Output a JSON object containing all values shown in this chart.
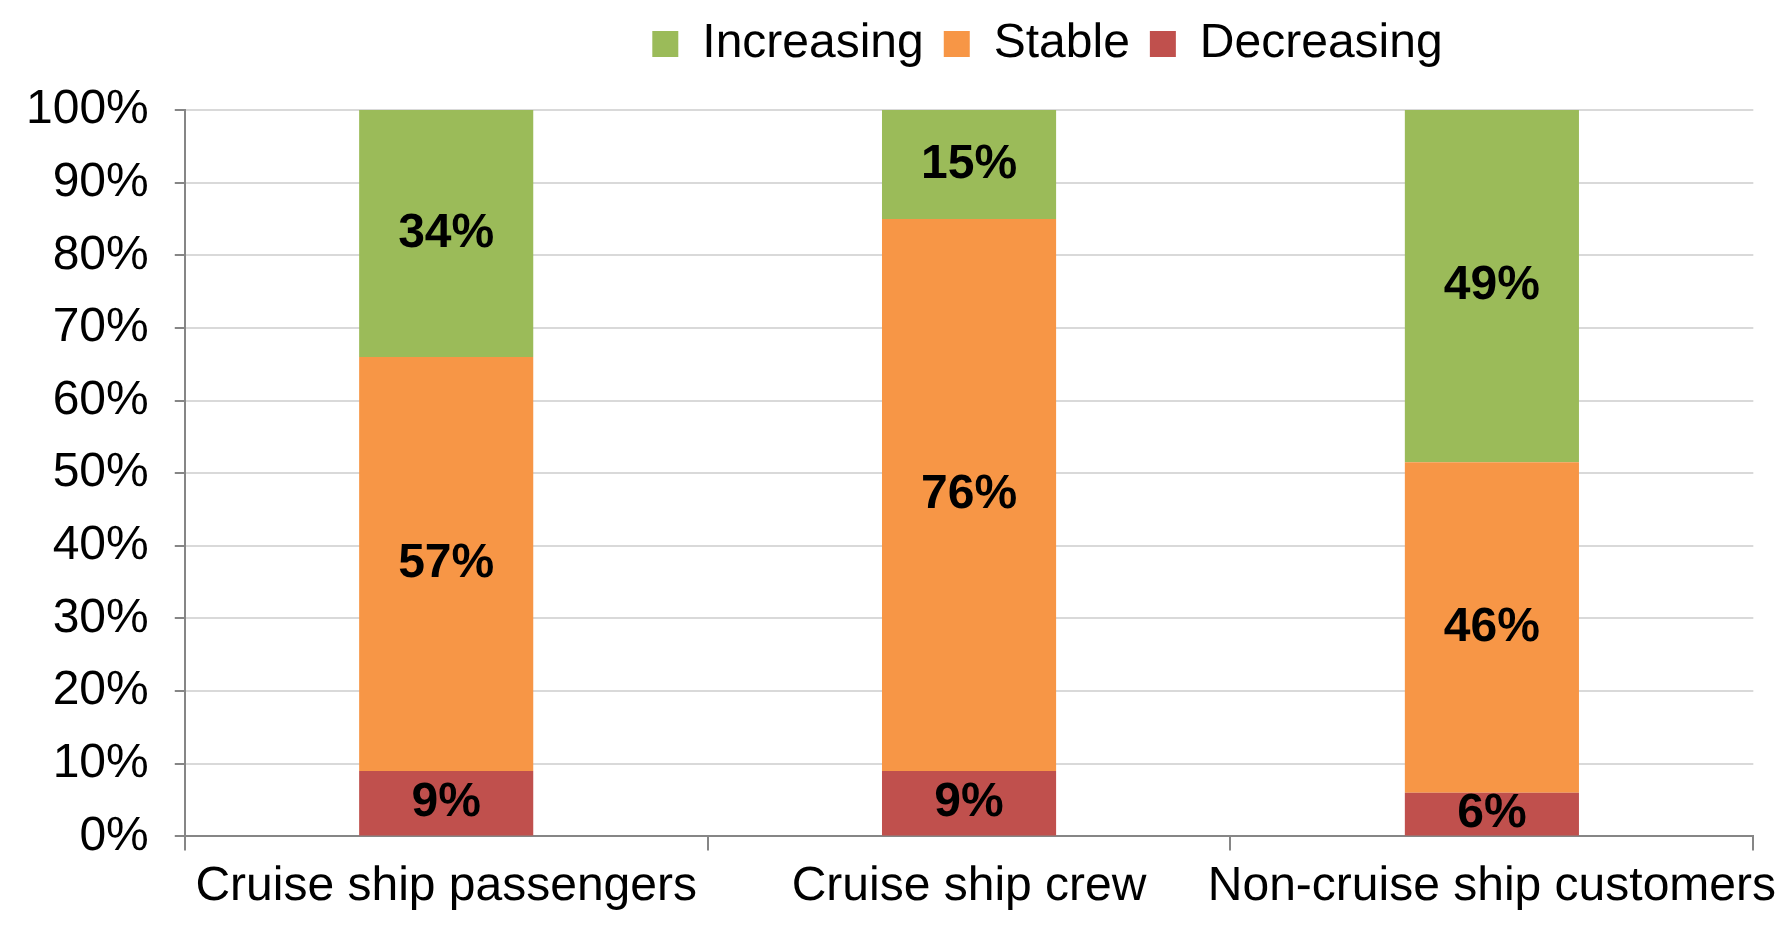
{
  "chart_data": {
    "type": "bar",
    "stacked": true,
    "categories": [
      "Cruise ship passengers",
      "Cruise ship crew",
      "Non-cruise ship customers"
    ],
    "series": [
      {
        "name": "Decreasing",
        "color": "#c0504d",
        "values": [
          9,
          9,
          6
        ],
        "value_labels": [
          "9%",
          "9%",
          "6%"
        ]
      },
      {
        "name": "Stable",
        "color": "#f79646",
        "values": [
          57,
          76,
          45.5
        ],
        "value_labels": [
          "57%",
          "76%",
          "46%"
        ]
      },
      {
        "name": "Increasing",
        "color": "#9bbb59",
        "values": [
          34,
          15,
          48.5
        ],
        "value_labels": [
          "34%",
          "15%",
          "49%"
        ]
      }
    ],
    "ylim": [
      0,
      100
    ],
    "yticks": [
      {
        "value": 0,
        "label": "0%"
      },
      {
        "value": 10,
        "label": "10%"
      },
      {
        "value": 20,
        "label": "20%"
      },
      {
        "value": 30,
        "label": "30%"
      },
      {
        "value": 40,
        "label": "40%"
      },
      {
        "value": 50,
        "label": "50%"
      },
      {
        "value": 60,
        "label": "60%"
      },
      {
        "value": 70,
        "label": "70%"
      },
      {
        "value": 80,
        "label": "80%"
      },
      {
        "value": 90,
        "label": "90%"
      },
      {
        "value": 100,
        "label": "100%"
      }
    ],
    "grid": "y",
    "legend": "top"
  }
}
